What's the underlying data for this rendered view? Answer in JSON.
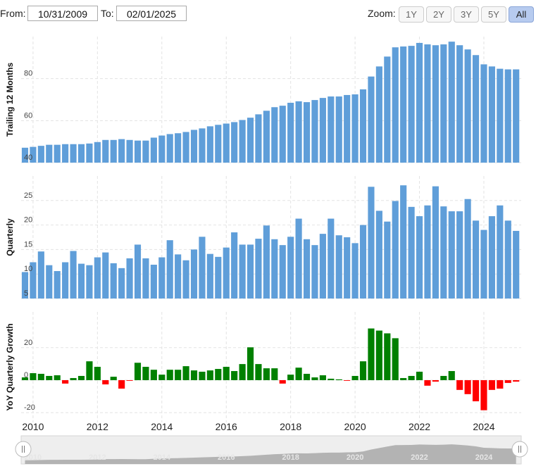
{
  "toolbar": {
    "from_label": "From:",
    "from": "10/31/2009",
    "to_label": "To:",
    "to": "02/01/2025",
    "zoom_label": "Zoom:",
    "zoom_buttons": [
      "1Y",
      "2Y",
      "3Y",
      "5Y",
      "All"
    ],
    "active_button": "All"
  },
  "chart_data": [
    {
      "type": "bar",
      "y_label": "Trailing 12 Months",
      "color": "#5f9ed9",
      "grid": true,
      "xlim": [
        2009.63,
        2025.16
      ],
      "xticks": [
        2010,
        2012,
        2014,
        2016,
        2018,
        2020,
        2022,
        2024
      ],
      "ylim": [
        40,
        100
      ],
      "yticks": [
        40,
        60,
        80
      ],
      "x": [
        2009.75,
        2010,
        2010.25,
        2010.5,
        2010.75,
        2011,
        2011.25,
        2011.5,
        2011.75,
        2012,
        2012.25,
        2012.5,
        2012.75,
        2013,
        2013.25,
        2013.5,
        2013.75,
        2014,
        2014.25,
        2014.5,
        2014.75,
        2015,
        2015.25,
        2015.5,
        2015.75,
        2016,
        2016.25,
        2016.5,
        2016.75,
        2017,
        2017.25,
        2017.5,
        2017.75,
        2018,
        2018.25,
        2018.5,
        2018.75,
        2019,
        2019.25,
        2019.5,
        2019.75,
        2020,
        2020.25,
        2020.5,
        2020.75,
        2021,
        2021.25,
        2021.5,
        2021.75,
        2022,
        2022.25,
        2022.5,
        2022.75,
        2023,
        2023.25,
        2023.5,
        2023.75,
        2024,
        2024.25,
        2024.5,
        2024.75,
        2025
      ],
      "values": [
        47.1,
        47.5,
        48,
        48.5,
        48.5,
        48.8,
        48.8,
        48.8,
        49.1,
        49.8,
        50.8,
        50.8,
        51.2,
        50.8,
        50.5,
        50.5,
        51.9,
        52.9,
        53.6,
        54,
        54.6,
        55.6,
        56.3,
        57.3,
        58,
        58.6,
        59.3,
        60.3,
        61.4,
        63,
        64.7,
        66.4,
        67.1,
        68.5,
        69.2,
        68.8,
        69.8,
        70.8,
        71.5,
        71.5,
        72.2,
        72.5,
        74.9,
        81,
        85.8,
        90.5,
        94.9,
        95.3,
        95.6,
        97,
        96.3,
        95.9,
        96.3,
        97.6,
        95.9,
        93.9,
        91.2,
        86.8,
        85.8,
        84.7,
        84.4,
        84.4
      ]
    },
    {
      "type": "bar",
      "y_label": "Quarterly",
      "color": "#5f9ed9",
      "grid": true,
      "xlim": [
        2009.63,
        2025.16
      ],
      "xticks": [
        2010,
        2012,
        2014,
        2016,
        2018,
        2020,
        2022,
        2024
      ],
      "ylim": [
        5,
        30
      ],
      "yticks": [
        5,
        10,
        15,
        20,
        25
      ],
      "x": [
        2009.75,
        2010,
        2010.25,
        2010.5,
        2010.75,
        2011,
        2011.25,
        2011.5,
        2011.75,
        2012,
        2012.25,
        2012.5,
        2012.75,
        2013,
        2013.25,
        2013.5,
        2013.75,
        2014,
        2014.25,
        2014.5,
        2014.75,
        2015,
        2015.25,
        2015.5,
        2015.75,
        2016,
        2016.25,
        2016.5,
        2016.75,
        2017,
        2017.25,
        2017.5,
        2017.75,
        2018,
        2018.25,
        2018.5,
        2018.75,
        2019,
        2019.25,
        2019.5,
        2019.75,
        2020,
        2020.25,
        2020.5,
        2020.75,
        2021,
        2021.25,
        2021.5,
        2021.75,
        2022,
        2022.25,
        2022.5,
        2022.75,
        2023,
        2023.25,
        2023.5,
        2023.75,
        2024,
        2024.25,
        2024.5,
        2024.75,
        2025
      ],
      "values": [
        10.4,
        12.4,
        14.6,
        11.8,
        10.6,
        12.4,
        14.7,
        12.1,
        11.8,
        13.4,
        14.4,
        12.2,
        11.2,
        13.2,
        16,
        13.2,
        11.9,
        13.4,
        16.9,
        14,
        12.8,
        15,
        17.6,
        14.1,
        13.5,
        15.4,
        18.5,
        16,
        16,
        17.2,
        19.9,
        17.1,
        15.9,
        17.6,
        21.3,
        17.1,
        15.9,
        18.2,
        21.3,
        17.9,
        17.5,
        16.3,
        20,
        27.8,
        22.9,
        20.7,
        24.9,
        28.1,
        23.7,
        21.8,
        24,
        27.9,
        23.8,
        22.8,
        22.8,
        25.3,
        20.9,
        19,
        21.8,
        24,
        20.9,
        18.8
      ]
    },
    {
      "type": "bar",
      "y_label": "YoY Quarterly Growth",
      "positive_color": "#008000",
      "negative_color": "#ff0000",
      "grid": true,
      "xlim": [
        2009.63,
        2025.16
      ],
      "xticks": [
        2010,
        2012,
        2014,
        2016,
        2018,
        2020,
        2022,
        2024
      ],
      "ylim": [
        -26,
        42
      ],
      "yticks": [
        -20,
        0,
        20
      ],
      "x": [
        2009.75,
        2010,
        2010.25,
        2010.5,
        2010.75,
        2011,
        2011.25,
        2011.5,
        2011.75,
        2012,
        2012.25,
        2012.5,
        2012.75,
        2013,
        2013.25,
        2013.5,
        2013.75,
        2014,
        2014.25,
        2014.5,
        2014.75,
        2015,
        2015.25,
        2015.5,
        2015.75,
        2016,
        2016.25,
        2016.5,
        2016.75,
        2017,
        2017.25,
        2017.5,
        2017.75,
        2018,
        2018.25,
        2018.5,
        2018.75,
        2019,
        2019.25,
        2019.5,
        2019.75,
        2020,
        2020.25,
        2020.5,
        2020.75,
        2021,
        2021.25,
        2021.5,
        2021.75,
        2022,
        2022.25,
        2022.5,
        2022.75,
        2023,
        2023.25,
        2023.5,
        2023.75,
        2024,
        2024.25,
        2024.5,
        2024.75,
        2025
      ],
      "values": [
        1.7,
        4.3,
        3.9,
        2.6,
        3,
        -2.1,
        1.3,
        2.6,
        11.6,
        8.2,
        -2.6,
        2.1,
        -5.2,
        -0.4,
        10.7,
        8.2,
        6.4,
        3.4,
        6.4,
        6.4,
        8.6,
        6,
        5.2,
        6,
        6.9,
        8.2,
        5.6,
        9.9,
        20.2,
        9.9,
        7.3,
        7.3,
        -2.1,
        3.4,
        7.7,
        3.9,
        1.7,
        3,
        0.9,
        0.5,
        -0.4,
        2.6,
        11.6,
        31.8,
        30.5,
        28.8,
        25.8,
        1.3,
        2.6,
        5.2,
        -3.4,
        -0.9,
        2.6,
        5.6,
        -6,
        -8.6,
        -13,
        -18.5,
        -6,
        -5.2,
        -1.7,
        -0.9
      ]
    }
  ]
}
